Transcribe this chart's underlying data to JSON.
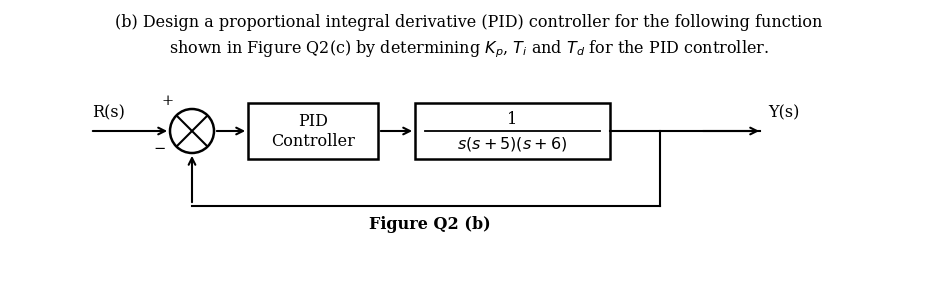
{
  "background_color": "#ffffff",
  "title_line1": "(b) Design a proportional integral derivative (PID) controller for the following function",
  "title_line2": "shown in Figure Q2(c) by determining $K_p$, $T_i$ and $T_d$ for the PID controller.",
  "fig_caption": "Figure Q2 (b)",
  "Rs_label": "R(s)",
  "Ys_label": "Y(s)",
  "pid_label_line1": "PID",
  "pid_label_line2": "Controller",
  "tf_numerator": "1",
  "tf_denominator": "$s(s+5)(s+6)$",
  "plus_sign": "+",
  "minus_sign": "−",
  "font_size_text": 11.5,
  "font_size_labels": 11.5,
  "font_size_caption": 11.5,
  "font_size_signs": 10.5
}
